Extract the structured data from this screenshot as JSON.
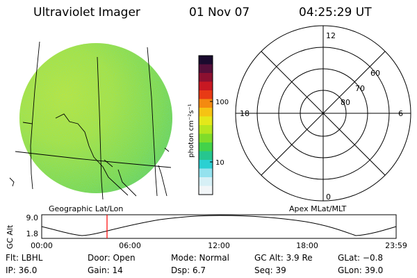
{
  "header": {
    "instrument": "Ultraviolet Imager",
    "date": "01 Nov 07",
    "time": "04:25:29 UT"
  },
  "colorbar": {
    "unit_label": "photon cm⁻²s⁻¹",
    "ticks": [
      "100",
      "10"
    ],
    "colors": [
      "#1a0a2e",
      "#550f3a",
      "#8c1030",
      "#c81822",
      "#e83a15",
      "#f48a10",
      "#f6c313",
      "#e4e81a",
      "#b6e61f",
      "#7fdc2a",
      "#43d24a",
      "#26c68f",
      "#2bd0d2",
      "#94e2ee",
      "#d7f0f6",
      "#f2f6f8"
    ]
  },
  "left_panel": {
    "caption": "Geographic Lat/Lon"
  },
  "right_panel": {
    "caption": "Apex MLat/MLT",
    "mlt_labels": {
      "top": "12",
      "left": "18",
      "right": "6",
      "bottom": "0"
    },
    "lat_labels": [
      "60",
      "70",
      "80"
    ]
  },
  "altitude_strip": {
    "axis_label": "GC Alt",
    "y_ticks": [
      "9.0",
      "1.8"
    ],
    "time_ticks": [
      "00:00",
      "06:00",
      "12:00",
      "18:00",
      "23:59"
    ],
    "current_time_hours": 4.425,
    "marker_color": "#ff0000"
  },
  "info": {
    "flt": "Flt: LBHL",
    "door": "Door: Open",
    "mode": "Mode: Normal",
    "gc_alt": "GC Alt: 3.9 Re",
    "glat": "GLat:  −0.8",
    "ip": "IP: 36.0",
    "gain": "Gain: 14",
    "dsp": "Dsp:     6.7",
    "seq": "Seq: 39",
    "glon": "GLon: 39.0"
  }
}
